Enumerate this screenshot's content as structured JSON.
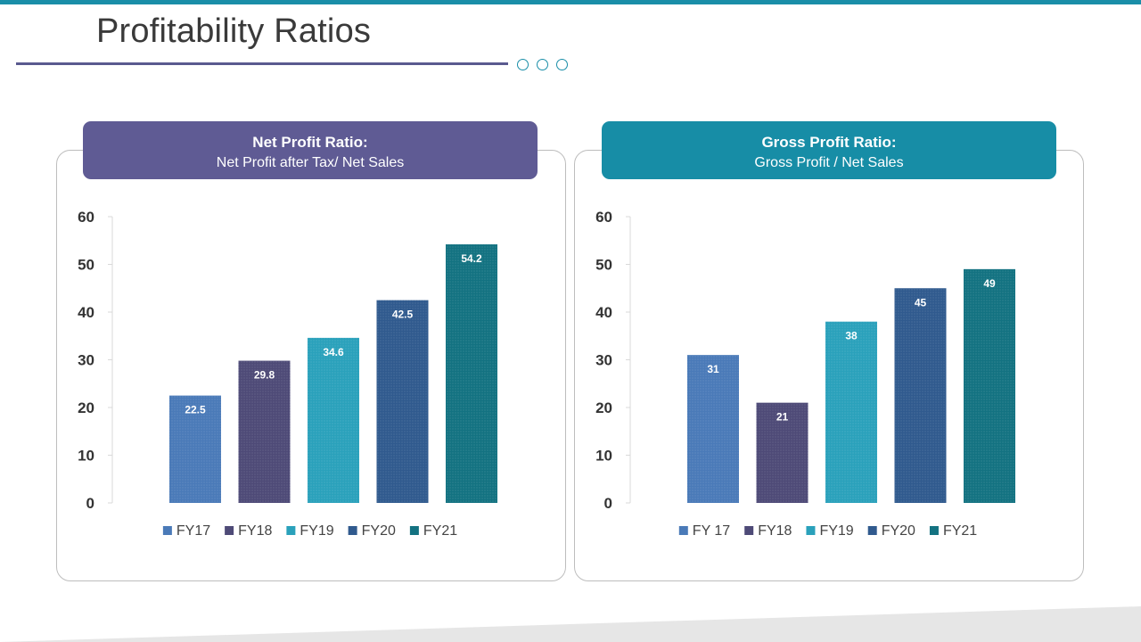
{
  "page": {
    "title": "Profitability Ratios"
  },
  "colors": {
    "accent": "#1a8ea8",
    "header_left": "#5f5b94",
    "header_right": "#178da6",
    "bar_fy17": "#4a7ab8",
    "bar_fy18": "#4e4a77",
    "bar_fy19": "#2aa1bb",
    "bar_fy20": "#305a8e",
    "bar_fy21": "#137281"
  },
  "chart_data": [
    {
      "type": "bar",
      "title": "Net Profit Ratio:",
      "subtitle": "Net Profit after Tax/ Net Sales",
      "categories": [
        "FY17",
        "FY18",
        "FY19",
        "FY20",
        "FY21"
      ],
      "values": [
        22.5,
        29.8,
        34.6,
        42.5,
        54.2
      ],
      "value_labels": [
        "22.5",
        "29.8",
        "34.6",
        "42.5",
        "54.2"
      ],
      "legend": [
        "FY17",
        "FY18",
        "FY19",
        "FY20",
        "FY21"
      ],
      "ylim": [
        0,
        60
      ],
      "yticks": [
        0,
        10,
        20,
        30,
        40,
        50,
        60
      ],
      "legend_position": "bottom",
      "grid": false,
      "xlabel": "",
      "ylabel": ""
    },
    {
      "type": "bar",
      "title": "Gross Profit Ratio:",
      "subtitle": "Gross Profit / Net Sales",
      "categories": [
        "FY 17",
        "FY18",
        "FY19",
        "FY20",
        "FY21"
      ],
      "values": [
        31,
        21,
        38,
        45,
        49
      ],
      "value_labels": [
        "31",
        "21",
        "38",
        "45",
        "49"
      ],
      "legend": [
        "FY 17",
        "FY18",
        "FY19",
        "FY20",
        "FY21"
      ],
      "ylim": [
        0,
        60
      ],
      "yticks": [
        0,
        10,
        20,
        30,
        40,
        50,
        60
      ],
      "legend_position": "bottom",
      "grid": false,
      "xlabel": "",
      "ylabel": ""
    }
  ]
}
